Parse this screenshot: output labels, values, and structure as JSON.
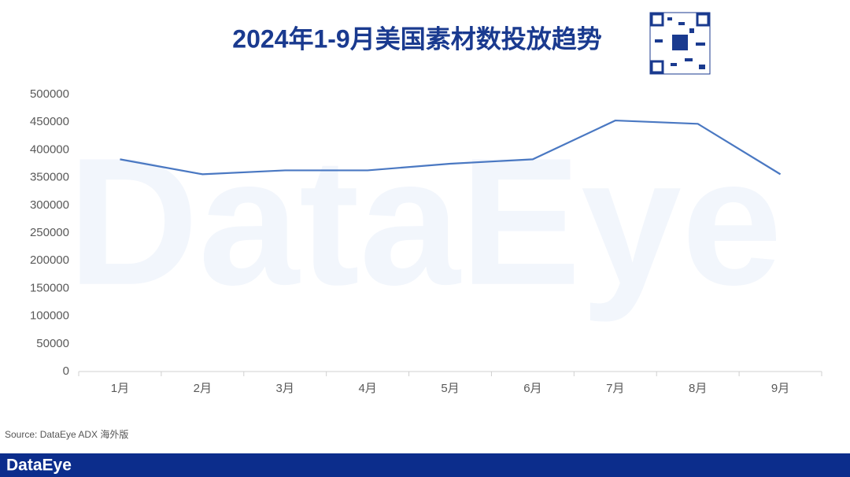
{
  "chart_data": {
    "type": "line",
    "title": "2024年1-9月美国素材数投放趋势",
    "categories": [
      "1月",
      "2月",
      "3月",
      "4月",
      "5月",
      "6月",
      "7月",
      "8月",
      "9月"
    ],
    "series": [
      {
        "name": "素材数",
        "color": "#4a78c2",
        "values": [
          383000,
          356000,
          363000,
          363000,
          375000,
          383000,
          453000,
          447000,
          356000
        ]
      }
    ],
    "ylim": [
      0,
      500000
    ],
    "yticks": [
      0,
      50000,
      100000,
      150000,
      200000,
      250000,
      300000,
      350000,
      400000,
      450000,
      500000
    ],
    "grid": false
  },
  "source": "Source: DataEye ADX 海外版",
  "watermark": "DataEye",
  "footer_brand": "DataEye"
}
